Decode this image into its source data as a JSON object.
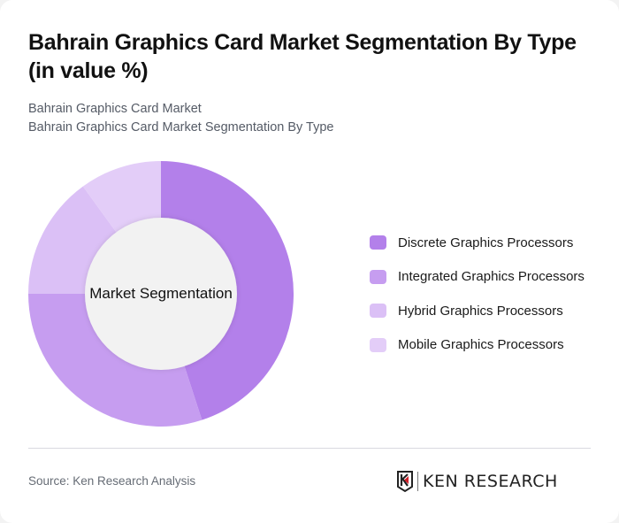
{
  "header": {
    "title": "Bahrain Graphics Card Market Segmentation By Type (in value %)",
    "subtitle_line1": "Bahrain Graphics Card Market",
    "subtitle_line2": "Bahrain Graphics Card Market Segmentation By Type"
  },
  "chart": {
    "center_label": "Market Segmentation"
  },
  "legend": {
    "items": [
      {
        "label": "Discrete Graphics Processors",
        "color": "#b380ea"
      },
      {
        "label": "Integrated Graphics Processors",
        "color": "#c69df0"
      },
      {
        "label": "Hybrid Graphics Processors",
        "color": "#dbc0f6"
      },
      {
        "label": "Mobile Graphics Processors",
        "color": "#e3cdf8"
      }
    ]
  },
  "footer": {
    "source": "Source: Ken Research Analysis",
    "logo_text": "KEN RESEARCH"
  },
  "chart_data": {
    "type": "pie",
    "variant": "donut",
    "title": "Bahrain Graphics Card Market Segmentation By Type (in value %)",
    "subtitle": "Bahrain Graphics Card Market / Bahrain Graphics Card Market Segmentation By Type",
    "center_label": "Market Segmentation",
    "categories": [
      "Discrete Graphics Processors",
      "Integrated Graphics Processors",
      "Hybrid Graphics Processors",
      "Mobile Graphics Processors"
    ],
    "values": [
      45,
      30,
      15,
      10
    ],
    "colors": [
      "#b380ea",
      "#c69df0",
      "#dbc0f6",
      "#e3cdf8"
    ],
    "unit": "%",
    "start_angle": "12 o'clock, clockwise",
    "legend_position": "right",
    "source": "Source: Ken Research Analysis"
  }
}
